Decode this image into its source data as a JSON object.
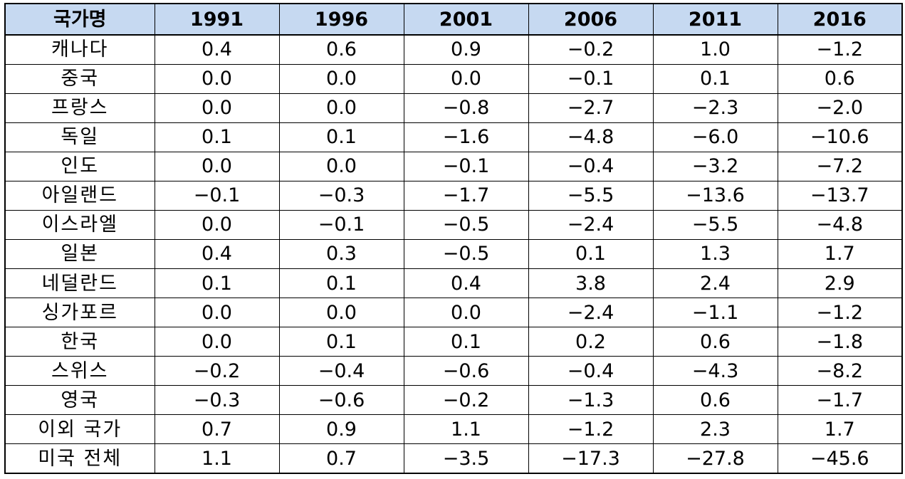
{
  "table": {
    "headers": [
      "국가명",
      "1991",
      "1996",
      "2001",
      "2006",
      "2011",
      "2016"
    ],
    "rows": [
      {
        "name": "캐나다",
        "values": [
          "0.4",
          "0.6",
          "0.9",
          "−0.2",
          "1.0",
          "−1.2"
        ]
      },
      {
        "name": "중국",
        "values": [
          "0.0",
          "0.0",
          "0.0",
          "−0.1",
          "0.1",
          "0.6"
        ]
      },
      {
        "name": "프랑스",
        "values": [
          "0.0",
          "0.0",
          "−0.8",
          "−2.7",
          "−2.3",
          "−2.0"
        ]
      },
      {
        "name": "독일",
        "values": [
          "0.1",
          "0.1",
          "−1.6",
          "−4.8",
          "−6.0",
          "−10.6"
        ]
      },
      {
        "name": "인도",
        "values": [
          "0.0",
          "0.0",
          "−0.1",
          "−0.4",
          "−3.2",
          "−7.2"
        ]
      },
      {
        "name": "아일랜드",
        "values": [
          "−0.1",
          "−0.3",
          "−1.7",
          "−5.5",
          "−13.6",
          "−13.7"
        ]
      },
      {
        "name": "이스라엘",
        "values": [
          "0.0",
          "−0.1",
          "−0.5",
          "−2.4",
          "−5.5",
          "−4.8"
        ]
      },
      {
        "name": "일본",
        "values": [
          "0.4",
          "0.3",
          "−0.5",
          "0.1",
          "1.3",
          "1.7"
        ]
      },
      {
        "name": "네덜란드",
        "values": [
          "0.1",
          "0.1",
          "0.4",
          "3.8",
          "2.4",
          "2.9"
        ]
      },
      {
        "name": "싱가포르",
        "values": [
          "0.0",
          "0.0",
          "0.0",
          "−2.4",
          "−1.1",
          "−1.2"
        ]
      },
      {
        "name": "한국",
        "values": [
          "0.0",
          "0.1",
          "0.1",
          "0.2",
          "0.6",
          "−1.8"
        ]
      },
      {
        "name": "스위스",
        "values": [
          "−0.2",
          "−0.4",
          "−0.6",
          "−0.4",
          "−4.3",
          "−8.2"
        ]
      },
      {
        "name": "영국",
        "values": [
          "−0.3",
          "−0.6",
          "−0.2",
          "−1.3",
          "0.6",
          "−1.7"
        ]
      },
      {
        "name": "이외 국가",
        "values": [
          "0.7",
          "0.9",
          "1.1",
          "−1.2",
          "2.3",
          "1.7"
        ]
      },
      {
        "name": "미국 전체",
        "values": [
          "1.1",
          "0.7",
          "−3.5",
          "−17.3",
          "−27.8",
          "−45.6"
        ]
      }
    ]
  },
  "colors": {
    "header_bg": "#c6d9f1",
    "border": "#000000",
    "text": "#000000"
  }
}
